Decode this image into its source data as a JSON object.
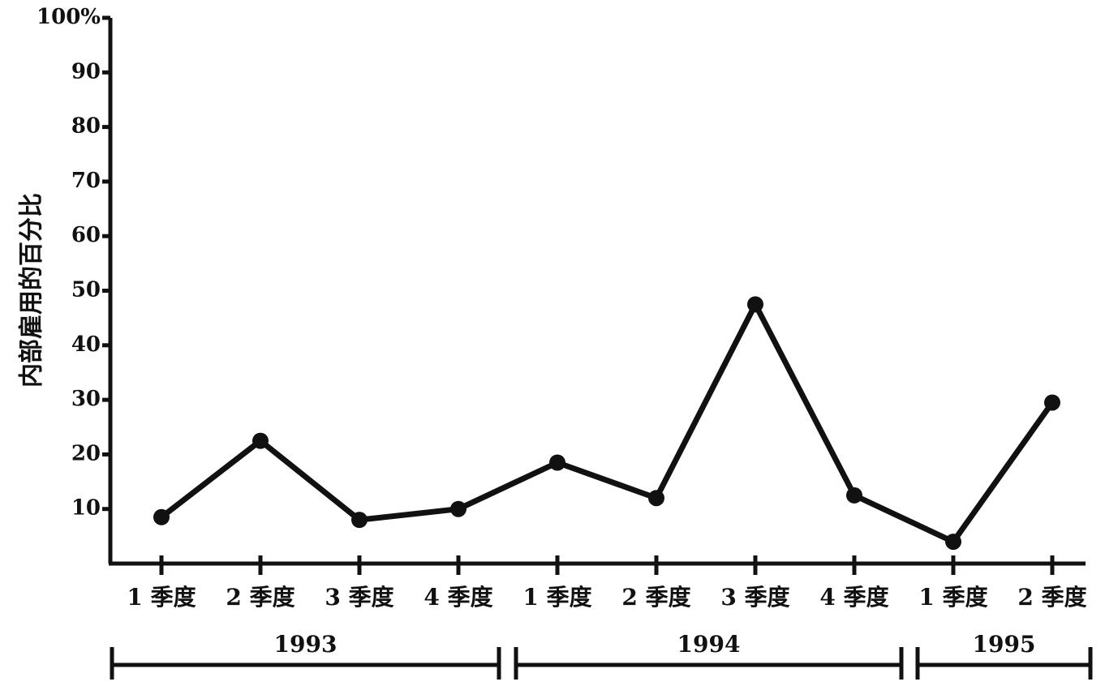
{
  "chart_data": {
    "type": "line",
    "ylabel": "内部雇用的百分比",
    "ylim": [
      0,
      100
    ],
    "yticks": [
      "10",
      "20",
      "30",
      "40",
      "50",
      "60",
      "70",
      "80",
      "90",
      "100%"
    ],
    "ytick_values": [
      10,
      20,
      30,
      40,
      50,
      60,
      70,
      80,
      90,
      100
    ],
    "categories": [
      "1 季度",
      "2 季度",
      "3 季度",
      "4 季度",
      "1 季度",
      "2 季度",
      "3 季度",
      "4 季度",
      "1 季度",
      "2 季度"
    ],
    "values": [
      8.5,
      22.5,
      8,
      10,
      18.5,
      12,
      47.5,
      12.5,
      4,
      29.5
    ],
    "groups": [
      {
        "label": "1993",
        "start": 0,
        "end": 3
      },
      {
        "label": "1994",
        "start": 4,
        "end": 7
      },
      {
        "label": "1995",
        "start": 8,
        "end": 9
      }
    ],
    "grid": false,
    "legend": "none"
  }
}
